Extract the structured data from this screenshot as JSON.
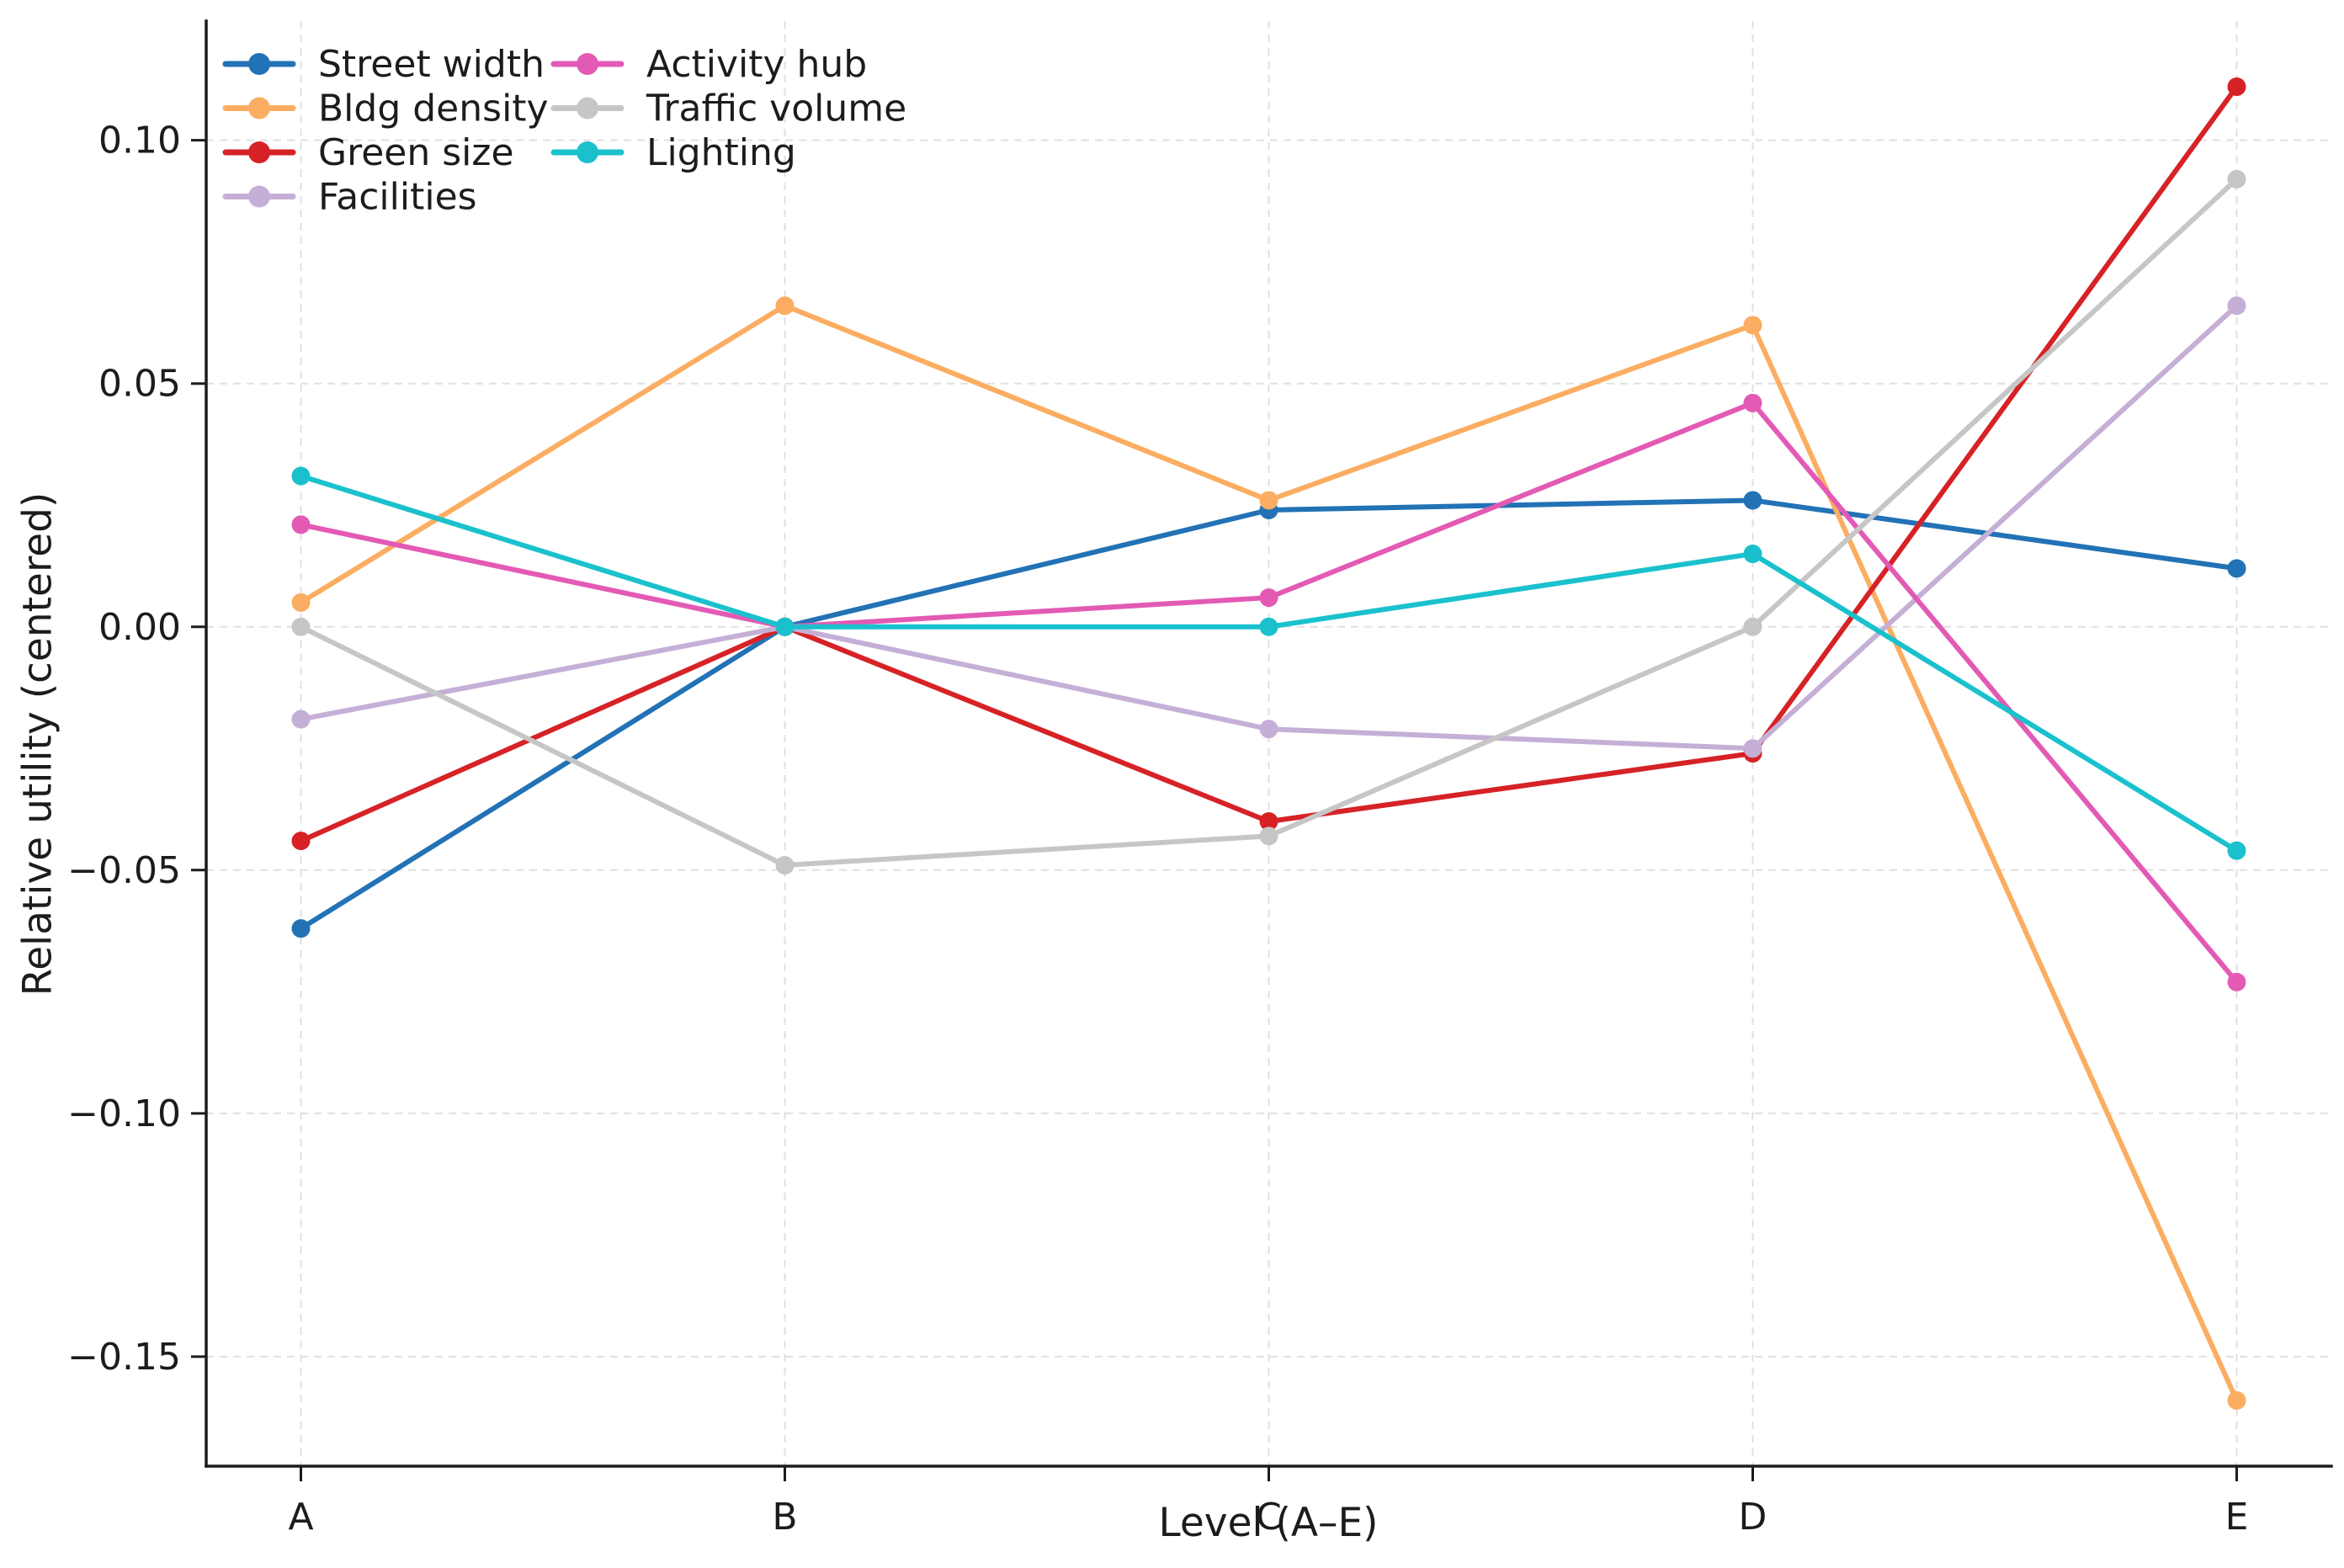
{
  "chart_data": {
    "type": "line",
    "categories": [
      "A",
      "B",
      "C",
      "D",
      "E"
    ],
    "series": [
      {
        "name": "Street width",
        "color": "#2272b5",
        "values": [
          -0.062,
          0.0,
          0.024,
          0.026,
          0.012
        ]
      },
      {
        "name": "Bldg density",
        "color": "#fbad62",
        "values": [
          0.005,
          0.066,
          0.026,
          0.062,
          -0.159
        ]
      },
      {
        "name": "Green size",
        "color": "#d62226",
        "values": [
          -0.044,
          0.0,
          -0.04,
          -0.026,
          0.111
        ]
      },
      {
        "name": "Facilities",
        "color": "#c5afd6",
        "values": [
          -0.019,
          0.0,
          -0.021,
          -0.025,
          0.066
        ]
      },
      {
        "name": "Activity hub",
        "color": "#e35ab5",
        "values": [
          0.021,
          0.0,
          0.006,
          0.046,
          -0.073
        ]
      },
      {
        "name": "Traffic volume",
        "color": "#c6c6c6",
        "values": [
          0.0,
          -0.049,
          -0.043,
          0.0,
          0.092
        ]
      },
      {
        "name": "Lighting",
        "color": "#1ac1cd",
        "values": [
          0.031,
          0.0,
          0.0,
          0.015,
          -0.046
        ]
      }
    ],
    "title": "",
    "xlabel": "Level (A–E)",
    "ylabel": "Relative utility (centered)",
    "ylim": [
      -0.1725,
      0.1245
    ],
    "yticks": [
      0.1,
      0.05,
      0.0,
      -0.05,
      -0.1,
      -0.15
    ],
    "grid": true,
    "legend_position": "upper left",
    "legend_columns": [
      [
        0,
        1,
        2,
        3
      ],
      [
        4,
        5,
        6
      ]
    ]
  }
}
